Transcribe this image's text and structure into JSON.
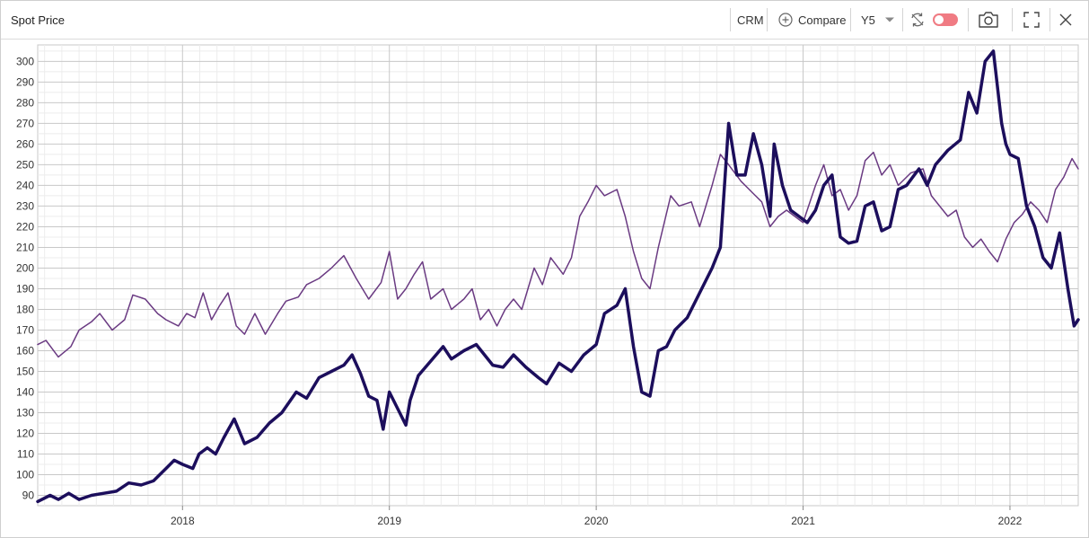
{
  "header": {
    "title": "Spot Price",
    "ticker": "CRM",
    "compare_label": "Compare",
    "period": "Y5"
  },
  "icons": {
    "compare": "plus-circle-icon",
    "period_dropdown": "chevron-down-icon",
    "sync": "sync-icon",
    "toggle": "toggle-switch",
    "camera": "camera-icon",
    "fullscreen": "fullscreen-icon",
    "close": "close-icon"
  },
  "colors": {
    "series_main": "#1c0e5c",
    "series_compare": "#6a3a82",
    "toggle": "#f07b83",
    "grid_major": "#c8c8c8",
    "grid_minor": "#ececec"
  },
  "chart_data": {
    "type": "line",
    "title": "",
    "xlabel": "",
    "ylabel": "",
    "xlim": [
      2017.3,
      2022.33
    ],
    "ylim": [
      85,
      308
    ],
    "yticks": [
      90,
      100,
      110,
      120,
      130,
      140,
      150,
      160,
      170,
      180,
      190,
      200,
      210,
      220,
      230,
      240,
      250,
      260,
      270,
      280,
      290,
      300
    ],
    "xticks": [
      {
        "label": "2018",
        "value": 2018
      },
      {
        "label": "2019",
        "value": 2019
      },
      {
        "label": "2020",
        "value": 2020
      },
      {
        "label": "2021",
        "value": 2021
      },
      {
        "label": "2022",
        "value": 2022
      }
    ],
    "grid": true,
    "series": [
      {
        "color": "#1c0e5c",
        "width": 3.5,
        "points": [
          [
            2017.3,
            87
          ],
          [
            2017.36,
            90
          ],
          [
            2017.4,
            88
          ],
          [
            2017.45,
            91
          ],
          [
            2017.5,
            88
          ],
          [
            2017.56,
            90
          ],
          [
            2017.62,
            91
          ],
          [
            2017.68,
            92
          ],
          [
            2017.74,
            96
          ],
          [
            2017.8,
            95
          ],
          [
            2017.86,
            97
          ],
          [
            2017.92,
            103
          ],
          [
            2017.96,
            107
          ],
          [
            2018.0,
            105
          ],
          [
            2018.05,
            103
          ],
          [
            2018.08,
            110
          ],
          [
            2018.12,
            113
          ],
          [
            2018.16,
            110
          ],
          [
            2018.2,
            118
          ],
          [
            2018.25,
            127
          ],
          [
            2018.3,
            115
          ],
          [
            2018.36,
            118
          ],
          [
            2018.42,
            125
          ],
          [
            2018.48,
            130
          ],
          [
            2018.55,
            140
          ],
          [
            2018.6,
            137
          ],
          [
            2018.66,
            147
          ],
          [
            2018.72,
            150
          ],
          [
            2018.78,
            153
          ],
          [
            2018.82,
            158
          ],
          [
            2018.86,
            149
          ],
          [
            2018.9,
            138
          ],
          [
            2018.94,
            136
          ],
          [
            2018.97,
            122
          ],
          [
            2019.0,
            140
          ],
          [
            2019.04,
            132
          ],
          [
            2019.08,
            124
          ],
          [
            2019.1,
            136
          ],
          [
            2019.14,
            148
          ],
          [
            2019.2,
            155
          ],
          [
            2019.26,
            162
          ],
          [
            2019.3,
            156
          ],
          [
            2019.36,
            160
          ],
          [
            2019.42,
            163
          ],
          [
            2019.46,
            158
          ],
          [
            2019.5,
            153
          ],
          [
            2019.55,
            152
          ],
          [
            2019.6,
            158
          ],
          [
            2019.66,
            152
          ],
          [
            2019.72,
            147
          ],
          [
            2019.76,
            144
          ],
          [
            2019.82,
            154
          ],
          [
            2019.88,
            150
          ],
          [
            2019.94,
            158
          ],
          [
            2020.0,
            163
          ],
          [
            2020.04,
            178
          ],
          [
            2020.1,
            182
          ],
          [
            2020.14,
            190
          ],
          [
            2020.18,
            162
          ],
          [
            2020.22,
            140
          ],
          [
            2020.26,
            138
          ],
          [
            2020.3,
            160
          ],
          [
            2020.34,
            162
          ],
          [
            2020.38,
            170
          ],
          [
            2020.44,
            176
          ],
          [
            2020.5,
            188
          ],
          [
            2020.56,
            200
          ],
          [
            2020.6,
            210
          ],
          [
            2020.64,
            270
          ],
          [
            2020.68,
            245
          ],
          [
            2020.72,
            245
          ],
          [
            2020.76,
            265
          ],
          [
            2020.8,
            250
          ],
          [
            2020.84,
            225
          ],
          [
            2020.86,
            260
          ],
          [
            2020.9,
            240
          ],
          [
            2020.94,
            228
          ],
          [
            2020.98,
            225
          ],
          [
            2021.02,
            222
          ],
          [
            2021.06,
            228
          ],
          [
            2021.1,
            240
          ],
          [
            2021.14,
            245
          ],
          [
            2021.18,
            215
          ],
          [
            2021.22,
            212
          ],
          [
            2021.26,
            213
          ],
          [
            2021.3,
            230
          ],
          [
            2021.34,
            232
          ],
          [
            2021.38,
            218
          ],
          [
            2021.42,
            220
          ],
          [
            2021.46,
            238
          ],
          [
            2021.5,
            240
          ],
          [
            2021.56,
            248
          ],
          [
            2021.6,
            240
          ],
          [
            2021.64,
            250
          ],
          [
            2021.7,
            257
          ],
          [
            2021.76,
            262
          ],
          [
            2021.8,
            285
          ],
          [
            2021.84,
            275
          ],
          [
            2021.88,
            300
          ],
          [
            2021.92,
            305
          ],
          [
            2021.96,
            270
          ],
          [
            2021.98,
            260
          ],
          [
            2022.0,
            255
          ],
          [
            2022.04,
            253
          ],
          [
            2022.08,
            230
          ],
          [
            2022.12,
            220
          ],
          [
            2022.16,
            205
          ],
          [
            2022.2,
            200
          ],
          [
            2022.24,
            217
          ],
          [
            2022.28,
            190
          ],
          [
            2022.31,
            172
          ],
          [
            2022.33,
            175
          ]
        ]
      },
      {
        "color": "#6a3a82",
        "width": 1.5,
        "points": [
          [
            2017.3,
            163
          ],
          [
            2017.34,
            165
          ],
          [
            2017.4,
            157
          ],
          [
            2017.46,
            162
          ],
          [
            2017.5,
            170
          ],
          [
            2017.56,
            174
          ],
          [
            2017.6,
            178
          ],
          [
            2017.66,
            170
          ],
          [
            2017.72,
            175
          ],
          [
            2017.76,
            187
          ],
          [
            2017.82,
            185
          ],
          [
            2017.88,
            178
          ],
          [
            2017.92,
            175
          ],
          [
            2017.98,
            172
          ],
          [
            2018.02,
            178
          ],
          [
            2018.06,
            176
          ],
          [
            2018.1,
            188
          ],
          [
            2018.14,
            175
          ],
          [
            2018.18,
            182
          ],
          [
            2018.22,
            188
          ],
          [
            2018.26,
            172
          ],
          [
            2018.3,
            168
          ],
          [
            2018.35,
            178
          ],
          [
            2018.4,
            168
          ],
          [
            2018.46,
            178
          ],
          [
            2018.5,
            184
          ],
          [
            2018.56,
            186
          ],
          [
            2018.6,
            192
          ],
          [
            2018.66,
            195
          ],
          [
            2018.72,
            200
          ],
          [
            2018.78,
            206
          ],
          [
            2018.84,
            195
          ],
          [
            2018.9,
            185
          ],
          [
            2018.96,
            193
          ],
          [
            2019.0,
            208
          ],
          [
            2019.04,
            185
          ],
          [
            2019.08,
            190
          ],
          [
            2019.12,
            197
          ],
          [
            2019.16,
            203
          ],
          [
            2019.2,
            185
          ],
          [
            2019.26,
            190
          ],
          [
            2019.3,
            180
          ],
          [
            2019.36,
            185
          ],
          [
            2019.4,
            190
          ],
          [
            2019.44,
            175
          ],
          [
            2019.48,
            180
          ],
          [
            2019.52,
            172
          ],
          [
            2019.56,
            180
          ],
          [
            2019.6,
            185
          ],
          [
            2019.64,
            180
          ],
          [
            2019.7,
            200
          ],
          [
            2019.74,
            192
          ],
          [
            2019.78,
            205
          ],
          [
            2019.84,
            197
          ],
          [
            2019.88,
            205
          ],
          [
            2019.92,
            225
          ],
          [
            2019.96,
            232
          ],
          [
            2020.0,
            240
          ],
          [
            2020.04,
            235
          ],
          [
            2020.1,
            238
          ],
          [
            2020.14,
            225
          ],
          [
            2020.18,
            208
          ],
          [
            2020.22,
            195
          ],
          [
            2020.26,
            190
          ],
          [
            2020.3,
            210
          ],
          [
            2020.36,
            235
          ],
          [
            2020.4,
            230
          ],
          [
            2020.46,
            232
          ],
          [
            2020.5,
            220
          ],
          [
            2020.56,
            240
          ],
          [
            2020.6,
            255
          ],
          [
            2020.64,
            250
          ],
          [
            2020.7,
            242
          ],
          [
            2020.76,
            236
          ],
          [
            2020.8,
            232
          ],
          [
            2020.84,
            220
          ],
          [
            2020.88,
            225
          ],
          [
            2020.92,
            228
          ],
          [
            2020.96,
            225
          ],
          [
            2021.0,
            222
          ],
          [
            2021.06,
            240
          ],
          [
            2021.1,
            250
          ],
          [
            2021.14,
            235
          ],
          [
            2021.18,
            238
          ],
          [
            2021.22,
            228
          ],
          [
            2021.26,
            235
          ],
          [
            2021.3,
            252
          ],
          [
            2021.34,
            256
          ],
          [
            2021.38,
            245
          ],
          [
            2021.42,
            250
          ],
          [
            2021.46,
            240
          ],
          [
            2021.52,
            246
          ],
          [
            2021.58,
            248
          ],
          [
            2021.62,
            235
          ],
          [
            2021.66,
            230
          ],
          [
            2021.7,
            225
          ],
          [
            2021.74,
            228
          ],
          [
            2021.78,
            215
          ],
          [
            2021.82,
            210
          ],
          [
            2021.86,
            214
          ],
          [
            2021.9,
            208
          ],
          [
            2021.94,
            203
          ],
          [
            2021.98,
            214
          ],
          [
            2022.02,
            222
          ],
          [
            2022.06,
            226
          ],
          [
            2022.1,
            232
          ],
          [
            2022.14,
            228
          ],
          [
            2022.18,
            222
          ],
          [
            2022.22,
            238
          ],
          [
            2022.26,
            244
          ],
          [
            2022.3,
            253
          ],
          [
            2022.33,
            248
          ]
        ]
      }
    ]
  }
}
